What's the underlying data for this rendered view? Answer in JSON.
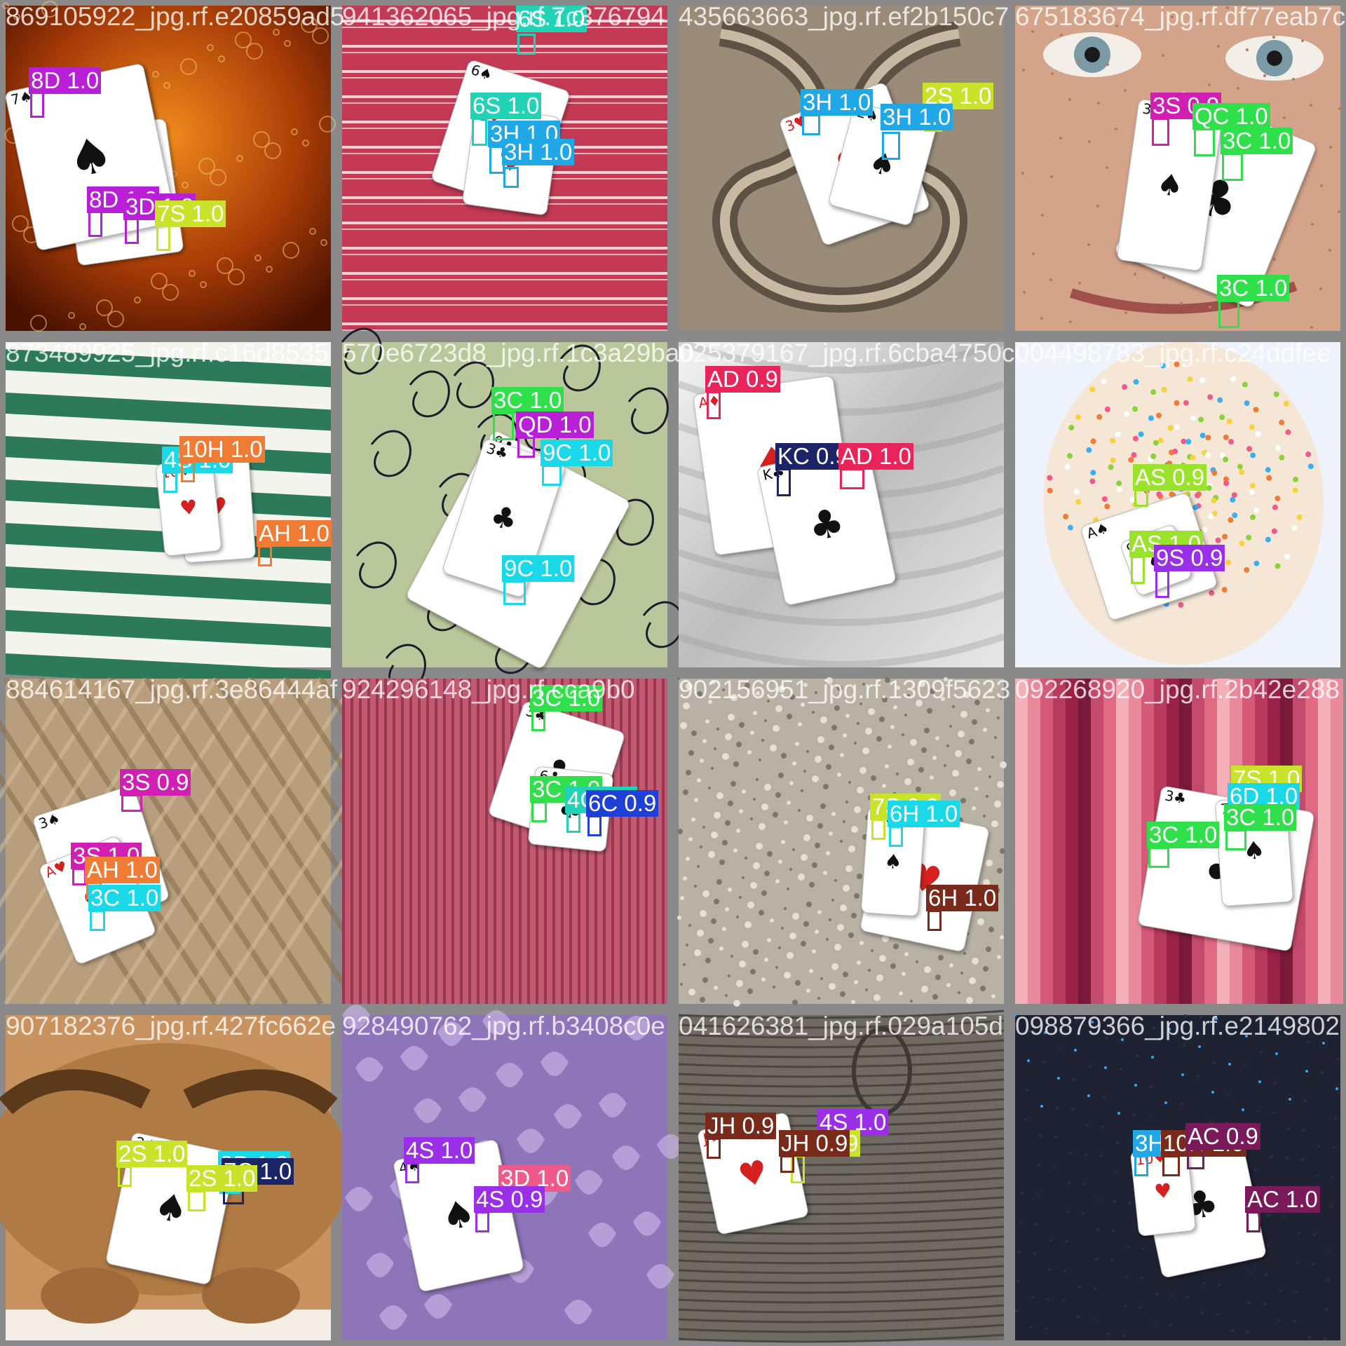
{
  "colors": {
    "frame": "#8a8a8a",
    "label_text": "#ffffff"
  },
  "tiles": [
    {
      "filename": "869105922_jpg.rf.e20859ad5",
      "background": "amber-bubbles",
      "cards": [
        {
          "rank": "8",
          "suit": "diamonds"
        },
        {
          "rank": "3",
          "suit": "diamonds"
        },
        {
          "rank": "7",
          "suit": "spades"
        }
      ],
      "detections": [
        {
          "label": "8D 1.0",
          "color": "#b81fd6"
        },
        {
          "label": "8D 1.0",
          "color": "#b81fd6"
        },
        {
          "label": "3D 1.0",
          "color": "#b81fd6"
        },
        {
          "label": "7S 1.0",
          "color": "#c9e22a"
        }
      ]
    },
    {
      "filename": "941362065_jpg.rf.7c376794",
      "background": "red-stripes",
      "cards": [
        {
          "rank": "6",
          "suit": "spades"
        },
        {
          "rank": "3",
          "suit": "hearts"
        }
      ],
      "detections": [
        {
          "label": "6S 1.0",
          "color": "#21d3b4"
        },
        {
          "label": "6S 1.0",
          "color": "#21d3b4"
        },
        {
          "label": "3H 1.0",
          "color": "#1fa7e6"
        },
        {
          "label": "3H 1.0",
          "color": "#1fa7e6"
        }
      ]
    },
    {
      "filename": "435663663_jpg.rf.ef2b150c7",
      "background": "stone-carving",
      "cards": [
        {
          "rank": "3",
          "suit": "hearts"
        },
        {
          "rank": "2",
          "suit": "spades"
        }
      ],
      "detections": [
        {
          "label": "3H 1.0",
          "color": "#1fa7e6"
        },
        {
          "label": "2S 1.0",
          "color": "#c9e22a"
        },
        {
          "label": "3H 1.0",
          "color": "#1fa7e6"
        }
      ]
    },
    {
      "filename": "675183674_jpg.rf.df77eab7c",
      "background": "face",
      "cards": [
        {
          "rank": "3",
          "suit": "clubs"
        },
        {
          "rank": "3",
          "suit": "spades"
        }
      ],
      "detections": [
        {
          "label": "3S 0.9",
          "color": "#d11fb4"
        },
        {
          "label": "QC 1.0",
          "color": "#2fe04a"
        },
        {
          "label": "3C 1.0",
          "color": "#2fe04a"
        },
        {
          "label": "3C 1.0",
          "color": "#2fe04a"
        }
      ]
    },
    {
      "filename": "873489925_jpg.rf.c16d8535",
      "background": "green-stripes",
      "cards": [
        {
          "rank": "A",
          "suit": "hearts"
        },
        {
          "rank": "10",
          "suit": "hearts"
        }
      ],
      "detections": [
        {
          "label": "4S 1.0",
          "color": "#19d8e8"
        },
        {
          "label": "10H 1.0",
          "color": "#f07b35"
        },
        {
          "label": "AH 1.0",
          "color": "#f07b35"
        }
      ]
    },
    {
      "filename": "570e6723d8_jpg.rf.1c3a29ba0",
      "background": "swirl-fabric",
      "cards": [
        {
          "rank": "9",
          "suit": "clubs"
        },
        {
          "rank": "3",
          "suit": "clubs"
        }
      ],
      "detections": [
        {
          "label": "3C 1.0",
          "color": "#2fe04a"
        },
        {
          "label": "QD 1.0",
          "color": "#b81fd6"
        },
        {
          "label": "9C 1.0",
          "color": "#19d8e8"
        },
        {
          "label": "9C 1.0",
          "color": "#19d8e8"
        }
      ]
    },
    {
      "filename": "025379167_jpg.rf.6cba4750c",
      "background": "white-silk",
      "cards": [
        {
          "rank": "A",
          "suit": "diamonds"
        },
        {
          "rank": "K",
          "suit": "clubs"
        }
      ],
      "detections": [
        {
          "label": "AD 0.9",
          "color": "#e8245a"
        },
        {
          "label": "KC 0.9",
          "color": "#1a2466"
        },
        {
          "label": "AD 1.0",
          "color": "#e8245a"
        }
      ]
    },
    {
      "filename": "004498783_jpg.rf.c24ddfee",
      "background": "sprinkles",
      "cards": [
        {
          "rank": "A",
          "suit": "spades"
        },
        {
          "rank": "9",
          "suit": "spades"
        }
      ],
      "detections": [
        {
          "label": "AS 0.9",
          "color": "#9be22a"
        },
        {
          "label": "AS 1.0",
          "color": "#9be22a"
        },
        {
          "label": "9S 0.9",
          "color": "#9b2ee8"
        }
      ]
    },
    {
      "filename": "884614167_jpg.rf.3e86444af",
      "background": "knit-beige",
      "cards": [
        {
          "rank": "3",
          "suit": "spades"
        },
        {
          "rank": "A",
          "suit": "hearts"
        }
      ],
      "detections": [
        {
          "label": "3S 0.9",
          "color": "#d11fb4"
        },
        {
          "label": "3S 1.0",
          "color": "#d11fb4"
        },
        {
          "label": "AH 1.0",
          "color": "#f07b35"
        },
        {
          "label": "3C 1.0",
          "color": "#19d8e8"
        }
      ]
    },
    {
      "filename": "924296148_jpg.rf.cca9b0",
      "background": "pink-vertical",
      "cards": [
        {
          "rank": "3",
          "suit": "clubs"
        },
        {
          "rank": "6",
          "suit": "clubs"
        }
      ],
      "detections": [
        {
          "label": "3C 1.0",
          "color": "#2fe04a"
        },
        {
          "label": "3C 1.0",
          "color": "#2fe04a"
        },
        {
          "label": "4C 1.0",
          "color": "#21d3b4"
        },
        {
          "label": "6C 0.9",
          "color": "#1f3fd6"
        }
      ]
    },
    {
      "filename": "902156951_jpg.rf.1309f5623",
      "background": "gravel",
      "cards": [
        {
          "rank": "6",
          "suit": "hearts"
        },
        {
          "rank": "7",
          "suit": "spades"
        }
      ],
      "detections": [
        {
          "label": "7S 0.9",
          "color": "#c9e22a"
        },
        {
          "label": "6H 1.0",
          "color": "#19d8e8"
        },
        {
          "label": "6H 1.0",
          "color": "#7a2a1a"
        }
      ]
    },
    {
      "filename": "092268920_jpg.rf.2b42e288",
      "background": "magenta-bars",
      "cards": [
        {
          "rank": "3",
          "suit": "clubs"
        },
        {
          "rank": "7",
          "suit": "spades"
        }
      ],
      "detections": [
        {
          "label": "7S 1.0",
          "color": "#c9e22a"
        },
        {
          "label": "6D 1.0",
          "color": "#19d8e8"
        },
        {
          "label": "3C 1.0",
          "color": "#2fe04a"
        },
        {
          "label": "3C 1.0",
          "color": "#2fe04a"
        }
      ]
    },
    {
      "filename": "907182376_jpg.rf.427fc662e",
      "background": "dog",
      "cards": [
        {
          "rank": "2",
          "suit": "spades"
        }
      ],
      "detections": [
        {
          "label": "2S 1.0",
          "color": "#c9e22a"
        },
        {
          "label": "3D 1.0",
          "color": "#19d8e8"
        },
        {
          "label": "7C 1.0",
          "color": "#1a2466"
        },
        {
          "label": "2S 1.0",
          "color": "#c9e22a"
        }
      ]
    },
    {
      "filename": "928490762_jpg.rf.b3408c0e",
      "background": "purple-paisley",
      "cards": [
        {
          "rank": "4",
          "suit": "spades"
        }
      ],
      "detections": [
        {
          "label": "4S 1.0",
          "color": "#9b2ee8"
        },
        {
          "label": "3D 1.0",
          "color": "#f05a8a"
        },
        {
          "label": "4S 0.9",
          "color": "#9b2ee8"
        }
      ]
    },
    {
      "filename": "041626381_jpg.rf.029a105d",
      "background": "wood",
      "cards": [
        {
          "rank": "J",
          "suit": "hearts"
        }
      ],
      "detections": [
        {
          "label": "JH 0.9",
          "color": "#7a2a1a"
        },
        {
          "label": "4S 1.0",
          "color": "#9b2ee8"
        },
        {
          "label": "7S 0.9",
          "color": "#c9e22a"
        },
        {
          "label": "JH 0.9",
          "color": "#7a2a1a"
        }
      ]
    },
    {
      "filename": "098879366_jpg.rf.e2149802",
      "background": "dark-knit",
      "cards": [
        {
          "rank": "A",
          "suit": "clubs"
        },
        {
          "rank": "10",
          "suit": "hearts"
        }
      ],
      "detections": [
        {
          "label": "3H 1.0",
          "color": "#1fa7e6"
        },
        {
          "label": "10H 1.0",
          "color": "#7a2a1a"
        },
        {
          "label": "AC 0.9",
          "color": "#7a1a5a"
        },
        {
          "label": "AC 1.0",
          "color": "#7a1a5a"
        }
      ]
    }
  ]
}
